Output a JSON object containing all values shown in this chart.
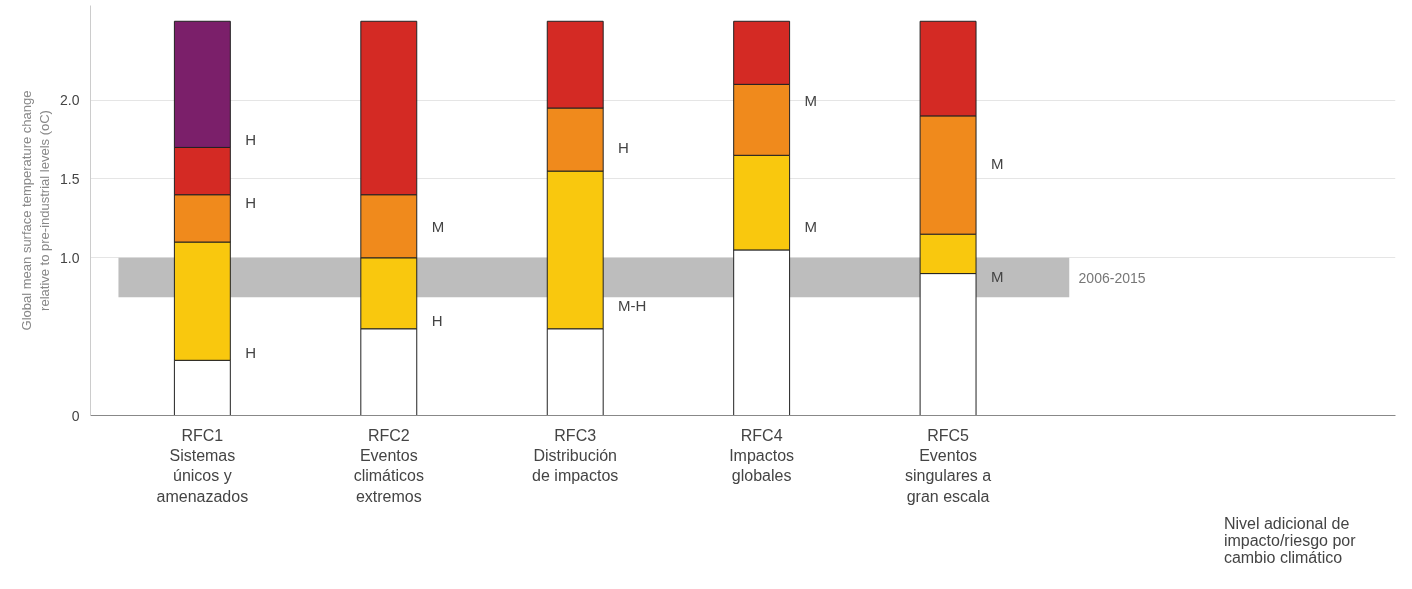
{
  "chart_data": {
    "type": "bar",
    "stacked": true,
    "ylabel": "Global mean surface temperature change\nrelative to pre-industrial levels (oC)",
    "categories": [
      "RFC1\nSistemas\núnicos y\namenazados",
      "RFC2\nEventos\nclimáticos\nextremos",
      "RFC3\nDistribución\nde impactos",
      "RFC4\nImpactos\nglobales",
      "RFC5\nEventos\nsingulares a\ngran escala"
    ],
    "series": [
      {
        "color": "#ffffff",
        "values": [
          0.35,
          0.55,
          0.55,
          1.05,
          0.9
        ]
      },
      {
        "color": "#f9c80e",
        "values": [
          0.75,
          0.45,
          1.0,
          0.6,
          0.25
        ]
      },
      {
        "color": "#f08a1c",
        "values": [
          0.3,
          0.4,
          0.4,
          0.45,
          0.75
        ]
      },
      {
        "color": "#d42a24",
        "values": [
          0.3,
          1.1,
          0.55,
          0.4,
          0.6
        ]
      },
      {
        "color": "#7b1f6a",
        "values": [
          0.8,
          0,
          0,
          0,
          0
        ]
      }
    ],
    "ylim": [
      0,
      2.6
    ],
    "yticks": [
      0,
      {
        "value": 1,
        "label": "1.0"
      },
      {
        "value": 1.5,
        "label": "1.5"
      },
      {
        "value": 2,
        "label": "2.0"
      }
    ],
    "grid": "y",
    "bands": [
      {
        "axis": "y",
        "from": 0.75,
        "to": 1.0,
        "label": "2006-2015",
        "color": "#bdbdbd"
      }
    ],
    "annotations": [
      "H",
      "H",
      "H",
      "M",
      "H",
      "H",
      "M-H",
      "M",
      "M",
      "M",
      "M",
      "Nivel adicional de\nimpacto/riesgo por\ncambio climático"
    ]
  }
}
